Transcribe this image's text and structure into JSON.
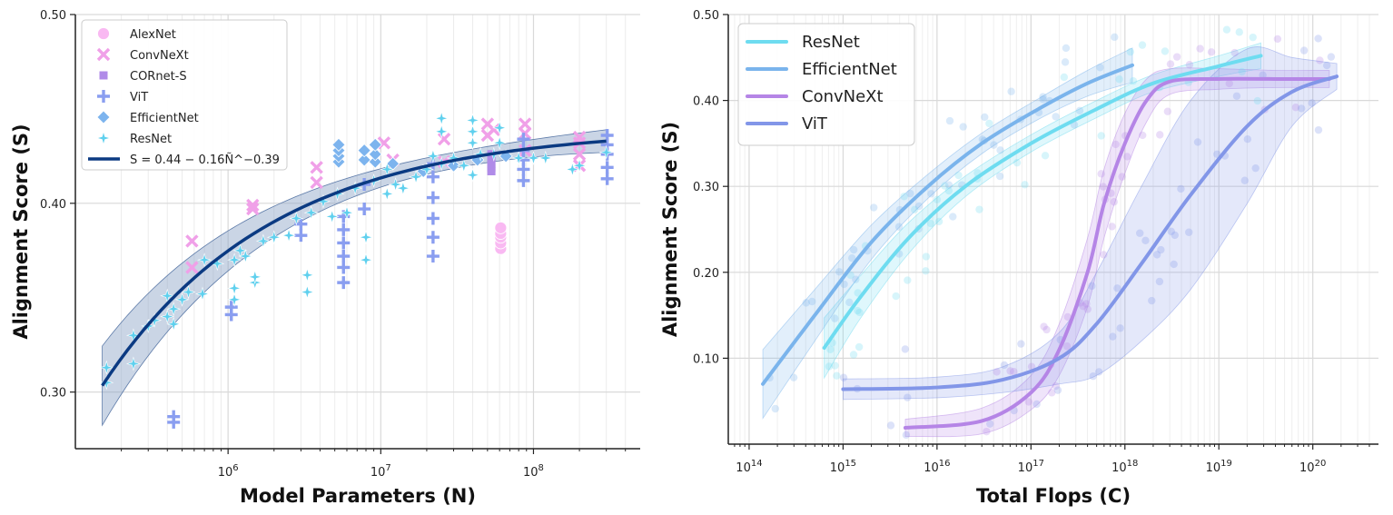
{
  "chart_data": [
    {
      "type": "scatter",
      "xscale": "log",
      "xlabel": "Model Parameters (N)",
      "ylabel": "Alignment Score (S)",
      "xlim": [
        100000,
        500000000
      ],
      "ylim": [
        0.27,
        0.5
      ],
      "x_ticks": [
        {
          "value": 1000000,
          "base": "10",
          "exp": "6"
        },
        {
          "value": 10000000,
          "base": "10",
          "exp": "7"
        },
        {
          "value": 100000000,
          "base": "10",
          "exp": "8"
        }
      ],
      "y_ticks": [
        {
          "value": 0.3,
          "label": "0.30"
        },
        {
          "value": 0.4,
          "label": "0.40"
        },
        {
          "value": 0.5,
          "label": "0.50"
        }
      ],
      "legend": [
        {
          "label": "AlexNet",
          "marker": "circle",
          "color": "#f9b9f2"
        },
        {
          "label": "ConvNeXt",
          "marker": "x",
          "color": "#f0a0e8"
        },
        {
          "label": "CORnet-S",
          "marker": "square",
          "color": "#b08be8"
        },
        {
          "label": "ViT",
          "marker": "plus",
          "color": "#8a9ef0"
        },
        {
          "label": "EfficientNet",
          "marker": "diamond",
          "color": "#7db4ee"
        },
        {
          "label": "ResNet",
          "marker": "star",
          "color": "#5fd0ee"
        },
        {
          "label": "S = 0.44 − 0.16Ñ^−0.39",
          "marker": "line",
          "color": "#0b3a82"
        }
      ],
      "fit": {
        "a": 0.44,
        "b": 0.16,
        "alpha": 0.39,
        "x_range": [
          150000,
          300000000
        ],
        "color": "#0b3a82"
      },
      "series": [
        {
          "name": "AlexNet",
          "marker": "circle",
          "color": "#f9b9f2",
          "points": [
            [
              61000000,
              0.376
            ],
            [
              61000000,
              0.379
            ],
            [
              61000000,
              0.382
            ],
            [
              61000000,
              0.384
            ],
            [
              61000000,
              0.387
            ]
          ]
        },
        {
          "name": "ConvNeXt",
          "marker": "x",
          "color": "#f0a0e8",
          "points": [
            [
              580000,
              0.366
            ],
            [
              580000,
              0.38
            ],
            [
              1450000,
              0.397
            ],
            [
              1450000,
              0.399
            ],
            [
              3800000,
              0.411
            ],
            [
              3800000,
              0.419
            ],
            [
              10500000,
              0.432
            ],
            [
              12000000,
              0.423
            ],
            [
              26000000,
              0.422
            ],
            [
              26000000,
              0.434
            ],
            [
              50000000,
              0.436
            ],
            [
              50000000,
              0.442
            ],
            [
              55000000,
              0.439
            ],
            [
              88000000,
              0.428
            ],
            [
              88000000,
              0.437
            ],
            [
              88000000,
              0.442
            ],
            [
              200000000,
              0.42
            ],
            [
              200000000,
              0.426
            ],
            [
              200000000,
              0.432
            ],
            [
              200000000,
              0.435
            ]
          ]
        },
        {
          "name": "CORnet-S",
          "marker": "square",
          "color": "#b08be8",
          "points": [
            [
              53000000,
              0.417
            ],
            [
              53000000,
              0.419
            ],
            [
              53000000,
              0.421
            ],
            [
              53000000,
              0.424
            ],
            [
              53000000,
              0.426
            ]
          ]
        },
        {
          "name": "ViT",
          "marker": "plus",
          "color": "#8a9ef0",
          "points": [
            [
              440000,
              0.284
            ],
            [
              440000,
              0.287
            ],
            [
              1050000,
              0.341
            ],
            [
              1050000,
              0.345
            ],
            [
              3000000,
              0.383
            ],
            [
              3000000,
              0.389
            ],
            [
              5700000,
              0.358
            ],
            [
              5700000,
              0.366
            ],
            [
              5700000,
              0.372
            ],
            [
              5700000,
              0.379
            ],
            [
              5700000,
              0.386
            ],
            [
              5700000,
              0.393
            ],
            [
              7800000,
              0.397
            ],
            [
              7800000,
              0.41
            ],
            [
              22000000,
              0.372
            ],
            [
              22000000,
              0.382
            ],
            [
              22000000,
              0.392
            ],
            [
              22000000,
              0.403
            ],
            [
              22000000,
              0.414
            ],
            [
              22000000,
              0.421
            ],
            [
              86000000,
              0.412
            ],
            [
              86000000,
              0.418
            ],
            [
              86000000,
              0.423
            ],
            [
              86000000,
              0.428
            ],
            [
              86000000,
              0.434
            ],
            [
              304000000,
              0.413
            ],
            [
              304000000,
              0.419
            ],
            [
              304000000,
              0.426
            ],
            [
              304000000,
              0.431
            ],
            [
              304000000,
              0.436
            ]
          ]
        },
        {
          "name": "EfficientNet",
          "marker": "diamond",
          "color": "#7db4ee",
          "points": [
            [
              5300000,
              0.422
            ],
            [
              5300000,
              0.425
            ],
            [
              5300000,
              0.428
            ],
            [
              5300000,
              0.431
            ],
            [
              7800000,
              0.423
            ],
            [
              7800000,
              0.428
            ],
            [
              9200000,
              0.422
            ],
            [
              9200000,
              0.426
            ],
            [
              9200000,
              0.431
            ],
            [
              12000000,
              0.421
            ],
            [
              19000000,
              0.417
            ],
            [
              30000000,
              0.42
            ],
            [
              43000000,
              0.423
            ],
            [
              66000000,
              0.425
            ]
          ]
        },
        {
          "name": "ResNet",
          "marker": "star",
          "color": "#5fd0ee",
          "points": [
            [
              160000,
              0.305
            ],
            [
              160000,
              0.313
            ],
            [
              240000,
              0.315
            ],
            [
              240000,
              0.33
            ],
            [
              300000,
              0.335
            ],
            [
              330000,
              0.338
            ],
            [
              400000,
              0.34
            ],
            [
              400000,
              0.351
            ],
            [
              440000,
              0.336
            ],
            [
              440000,
              0.344
            ],
            [
              500000,
              0.349
            ],
            [
              550000,
              0.353
            ],
            [
              680000,
              0.352
            ],
            [
              700000,
              0.37
            ],
            [
              850000,
              0.368
            ],
            [
              1100000,
              0.349
            ],
            [
              1100000,
              0.355
            ],
            [
              1100000,
              0.37
            ],
            [
              1200000,
              0.375
            ],
            [
              1300000,
              0.372
            ],
            [
              1500000,
              0.358
            ],
            [
              1500000,
              0.361
            ],
            [
              1700000,
              0.38
            ],
            [
              2000000,
              0.382
            ],
            [
              2500000,
              0.383
            ],
            [
              2800000,
              0.392
            ],
            [
              3300000,
              0.353
            ],
            [
              3300000,
              0.362
            ],
            [
              3500000,
              0.395
            ],
            [
              4200000,
              0.401
            ],
            [
              4800000,
              0.393
            ],
            [
              5200000,
              0.405
            ],
            [
              6000000,
              0.395
            ],
            [
              6800000,
              0.408
            ],
            [
              8000000,
              0.37
            ],
            [
              8000000,
              0.382
            ],
            [
              9000000,
              0.412
            ],
            [
              11000000,
              0.405
            ],
            [
              11000000,
              0.418
            ],
            [
              12500000,
              0.41
            ],
            [
              14000000,
              0.408
            ],
            [
              17000000,
              0.414
            ],
            [
              20000000,
              0.418
            ],
            [
              22000000,
              0.425
            ],
            [
              25000000,
              0.421
            ],
            [
              25000000,
              0.438
            ],
            [
              25000000,
              0.445
            ],
            [
              30000000,
              0.424
            ],
            [
              35000000,
              0.42
            ],
            [
              40000000,
              0.415
            ],
            [
              40000000,
              0.432
            ],
            [
              40000000,
              0.438
            ],
            [
              40000000,
              0.444
            ],
            [
              45000000,
              0.426
            ],
            [
              55000000,
              0.426
            ],
            [
              60000000,
              0.432
            ],
            [
              60000000,
              0.44
            ],
            [
              80000000,
              0.424
            ],
            [
              100000000,
              0.424
            ],
            [
              120000000,
              0.424
            ],
            [
              180000000,
              0.418
            ],
            [
              200000000,
              0.42
            ],
            [
              300000000,
              0.427
            ]
          ]
        }
      ]
    },
    {
      "type": "line",
      "xscale": "log",
      "xlabel": "Total Flops (C)",
      "ylabel": "Alignment Score (S)",
      "xlim": [
        60000000000000,
        500000000000000000000
      ],
      "ylim": [
        0.0,
        0.5
      ],
      "x_ticks": [
        {
          "value": 100000000000000.0,
          "base": "10",
          "exp": "14"
        },
        {
          "value": 1000000000000000.0,
          "base": "10",
          "exp": "15"
        },
        {
          "value": 1e+16,
          "base": "10",
          "exp": "16"
        },
        {
          "value": 1e+17,
          "base": "10",
          "exp": "17"
        },
        {
          "value": 1e+18,
          "base": "10",
          "exp": "18"
        },
        {
          "value": 1e+19,
          "base": "10",
          "exp": "19"
        },
        {
          "value": 1e+20,
          "base": "10",
          "exp": "20"
        }
      ],
      "y_ticks": [
        {
          "value": 0.1,
          "label": "0.10"
        },
        {
          "value": 0.2,
          "label": "0.20"
        },
        {
          "value": 0.3,
          "label": "0.30"
        },
        {
          "value": 0.4,
          "label": "0.40"
        },
        {
          "value": 0.5,
          "label": "0.50"
        }
      ],
      "legend": [
        {
          "label": "ResNet",
          "color": "#6edcf0"
        },
        {
          "label": "EfficientNet",
          "color": "#7ab4ec"
        },
        {
          "label": "ConvNeXt",
          "color": "#b585e6"
        },
        {
          "label": "ViT",
          "color": "#8296e8"
        }
      ],
      "series": [
        {
          "name": "ResNet",
          "color": "#6edcf0",
          "points": [
            [
              630000000000000.0,
              0.112
            ],
            [
              1500000000000000.0,
              0.17
            ],
            [
              5000000000000000.0,
              0.24
            ],
            [
              2e+16,
              0.3
            ],
            [
              1e+17,
              0.35
            ],
            [
              5e+17,
              0.39
            ],
            [
              2e+18,
              0.42
            ],
            [
              1e+19,
              0.44
            ],
            [
              2.8e+19,
              0.452
            ]
          ],
          "band": [
            0.035,
            0.025,
            0.018,
            0.012,
            0.01,
            0.01,
            0.01,
            0.012,
            0.015
          ]
        },
        {
          "name": "EfficientNet",
          "color": "#7ab4ec",
          "points": [
            [
              140000000000000.0,
              0.07
            ],
            [
              500000000000000.0,
              0.15
            ],
            [
              2000000000000000.0,
              0.235
            ],
            [
              8000000000000000.0,
              0.3
            ],
            [
              3e+16,
              0.35
            ],
            [
              1.2e+17,
              0.39
            ],
            [
              4e+17,
              0.42
            ],
            [
              1.2e+18,
              0.441
            ]
          ],
          "band": [
            0.04,
            0.03,
            0.02,
            0.014,
            0.012,
            0.012,
            0.015,
            0.02
          ]
        },
        {
          "name": "ConvNeXt",
          "color": "#b585e6",
          "points": [
            [
              4600000000000000.0,
              0.019
            ],
            [
              3e+16,
              0.027
            ],
            [
              1e+17,
              0.06
            ],
            [
              2e+17,
              0.11
            ],
            [
              4e+17,
              0.2
            ],
            [
              6e+17,
              0.28
            ],
            [
              1e+18,
              0.35
            ],
            [
              1.7e+18,
              0.4
            ],
            [
              3e+18,
              0.422
            ],
            [
              1e+19,
              0.425
            ],
            [
              4e+19,
              0.425
            ],
            [
              1.5e+20,
              0.425
            ]
          ],
          "band": [
            0.01,
            0.015,
            0.02,
            0.03,
            0.04,
            0.04,
            0.035,
            0.025,
            0.015,
            0.012,
            0.01,
            0.01
          ]
        },
        {
          "name": "ViT",
          "color": "#8296e8",
          "points": [
            [
              1000000000000000.0,
              0.064
            ],
            [
              1e+16,
              0.066
            ],
            [
              5e+16,
              0.075
            ],
            [
              2e+17,
              0.1
            ],
            [
              5e+17,
              0.14
            ],
            [
              1.5e+18,
              0.21
            ],
            [
              5e+18,
              0.29
            ],
            [
              2e+19,
              0.37
            ],
            [
              6e+19,
              0.41
            ],
            [
              1.8e+20,
              0.428
            ]
          ],
          "band": [
            0.012,
            0.012,
            0.015,
            0.03,
            0.06,
            0.09,
            0.11,
            0.09,
            0.04,
            0.015
          ]
        }
      ]
    }
  ]
}
